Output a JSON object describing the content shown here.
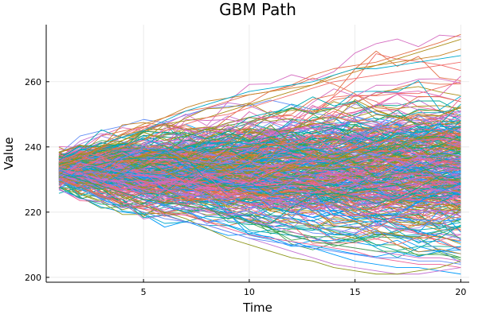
{
  "chart_data": {
    "type": "line",
    "title": "GBM Path",
    "xlabel": "Time",
    "ylabel": "Value",
    "xlim": [
      0.4,
      20.4
    ],
    "ylim": [
      198.5,
      277.5
    ],
    "xticks": [
      5,
      10,
      15,
      20
    ],
    "yticks": [
      200,
      220,
      240,
      260
    ],
    "grid": true,
    "legend": "none",
    "x": [
      1,
      2,
      3,
      4,
      5,
      6,
      7,
      8,
      9,
      10,
      11,
      12,
      13,
      14,
      15,
      16,
      17,
      18,
      19,
      20
    ],
    "series_count": 400,
    "start_value": 233,
    "start_range": [
      226,
      242
    ],
    "end_range": [
      201,
      275
    ],
    "palette": [
      "#009AFA",
      "#E36F47",
      "#3EA44E",
      "#C371D2",
      "#AC8E18",
      "#00AAAE",
      "#ED5E93",
      "#C68225",
      "#00A98D",
      "#8E971D",
      "#00A9CD",
      "#9B7FE8",
      "#618DF6",
      "#F16C6A",
      "#DC64B2",
      "#D46AC0"
    ],
    "series": [
      {
        "values": [
          233,
          236,
          240,
          243,
          246,
          249,
          251,
          252,
          254,
          256,
          257,
          259,
          262,
          264,
          265,
          266,
          268,
          270,
          272,
          274.5
        ]
      },
      {
        "values": [
          234,
          237,
          240,
          242,
          245,
          247,
          248,
          249,
          251,
          253,
          255,
          257,
          259,
          262,
          264,
          265,
          267,
          269,
          271,
          273
        ]
      },
      {
        "values": [
          235,
          238,
          241,
          244,
          247,
          249,
          252,
          254,
          255,
          256,
          257,
          258,
          259,
          261,
          263,
          265,
          266,
          267,
          268,
          270
        ]
      },
      {
        "values": [
          236,
          239,
          241,
          243,
          245,
          248,
          251,
          253,
          255,
          257,
          258,
          259,
          260,
          262,
          264,
          264,
          265,
          266,
          267,
          268
        ]
      },
      {
        "values": [
          234,
          236,
          238,
          240,
          242,
          245,
          247,
          249,
          250,
          252,
          254,
          256,
          258,
          260,
          261,
          262,
          263,
          264,
          265,
          266
        ]
      },
      {
        "values": [
          233,
          230,
          228,
          226,
          224,
          222,
          220,
          218,
          216,
          214,
          212,
          211,
          209,
          207,
          205,
          204,
          203,
          203,
          202,
          201
        ]
      },
      {
        "values": [
          232,
          229,
          226,
          224,
          222,
          219,
          217,
          216,
          214,
          212,
          210,
          208,
          206,
          204,
          203,
          202,
          201,
          201,
          202,
          203
        ]
      },
      {
        "values": [
          231,
          228,
          225,
          223,
          221,
          220,
          219,
          217,
          215,
          213,
          212,
          211,
          210,
          209,
          208,
          206,
          205,
          204,
          204,
          203
        ]
      },
      {
        "values": [
          231,
          229,
          227,
          225,
          222,
          220,
          218,
          215,
          212,
          210,
          208,
          206,
          205,
          203,
          202,
          201,
          201,
          202,
          203,
          205
        ]
      },
      {
        "values": [
          230,
          227,
          224,
          222,
          220,
          218,
          217,
          216,
          214,
          212,
          211,
          210,
          209,
          208,
          207,
          206,
          206,
          205,
          205,
          204
        ]
      },
      {
        "values": [
          233,
          232,
          230,
          229,
          227,
          225,
          223,
          221,
          219,
          217,
          216,
          214,
          212,
          210,
          209,
          208,
          207,
          206,
          206,
          205
        ]
      },
      {
        "values": [
          232,
          230,
          228,
          226,
          224,
          223,
          222,
          221,
          219,
          217,
          215,
          213,
          211,
          210,
          209,
          208,
          208,
          207,
          207,
          206
        ]
      }
    ]
  }
}
